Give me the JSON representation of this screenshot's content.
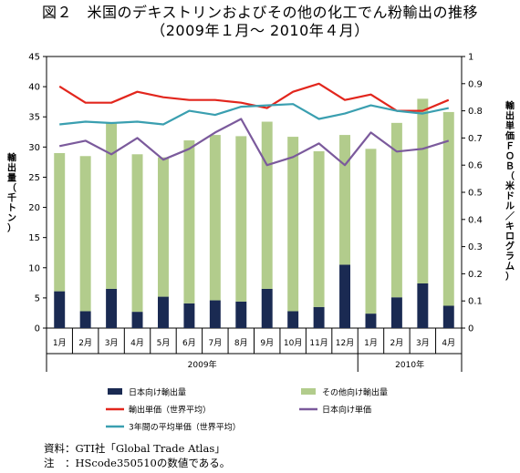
{
  "title": {
    "line1": "図２　米国のデキストリンおよびその他の化工でん粉輸出の推移",
    "line2": "（2009年１月～ 2010年４月）"
  },
  "chart_data": {
    "type": "bar+line",
    "categories": [
      "1月",
      "2月",
      "3月",
      "4月",
      "5月",
      "6月",
      "7月",
      "8月",
      "9月",
      "10月",
      "11月",
      "12月",
      "1月",
      "2月",
      "3月",
      "4月"
    ],
    "year_groups": [
      {
        "label": "2009年",
        "count": 12
      },
      {
        "label": "2010年",
        "count": 4
      }
    ],
    "ylabel_left": "輸出量（千トン）",
    "ylabel_right": "輸出単価ＦＯＢ（米ドル／キログラム）",
    "ylim_left": [
      0,
      45
    ],
    "yticks_left": [
      0,
      5,
      10,
      15,
      20,
      25,
      30,
      35,
      40,
      45
    ],
    "ylim_right": [
      0,
      1
    ],
    "yticks_right": [
      "0",
      "0.1",
      "0.2",
      "0.3",
      "0.4",
      "0.5",
      "0.6",
      "0.7",
      "0.8",
      "0.9",
      "1"
    ],
    "bar_series": [
      {
        "name": "日本向け輸出量",
        "color": "#1a2a52",
        "values": [
          6.1,
          2.8,
          6.5,
          2.7,
          5.2,
          4.1,
          4.6,
          4.4,
          6.5,
          2.8,
          3.5,
          10.5,
          2.4,
          5.1,
          7.4,
          3.7
        ]
      },
      {
        "name": "その他向け輸出量",
        "color": "#b2cc8c",
        "values": [
          22.9,
          25.7,
          27.5,
          26.1,
          23.1,
          27.0,
          27.4,
          27.4,
          27.7,
          28.9,
          25.8,
          21.5,
          27.3,
          28.9,
          30.6,
          32.1
        ]
      }
    ],
    "line_series": [
      {
        "name": "輸出単価（世界平均）",
        "color": "#e2261d",
        "values": [
          0.89,
          0.83,
          0.83,
          0.87,
          0.85,
          0.84,
          0.84,
          0.83,
          0.81,
          0.87,
          0.9,
          0.84,
          0.86,
          0.8,
          0.8,
          0.84
        ]
      },
      {
        "name": "日本向け単価",
        "color": "#7b5a9c",
        "values": [
          0.67,
          0.69,
          0.64,
          0.7,
          0.62,
          0.66,
          0.72,
          0.77,
          0.6,
          0.63,
          0.68,
          0.6,
          0.72,
          0.65,
          0.66,
          0.69
        ]
      },
      {
        "name": "3年間の平均単価（世界平均）",
        "color": "#3a9fb0",
        "values": [
          0.75,
          0.76,
          0.755,
          0.76,
          0.75,
          0.8,
          0.785,
          0.815,
          0.82,
          0.825,
          0.77,
          0.79,
          0.82,
          0.8,
          0.79,
          0.81
        ]
      }
    ],
    "grid": false
  },
  "notes": {
    "source": "資料：GTI社「Global Trade Atlas」",
    "note": "注　：HScode350510の数値である。"
  }
}
